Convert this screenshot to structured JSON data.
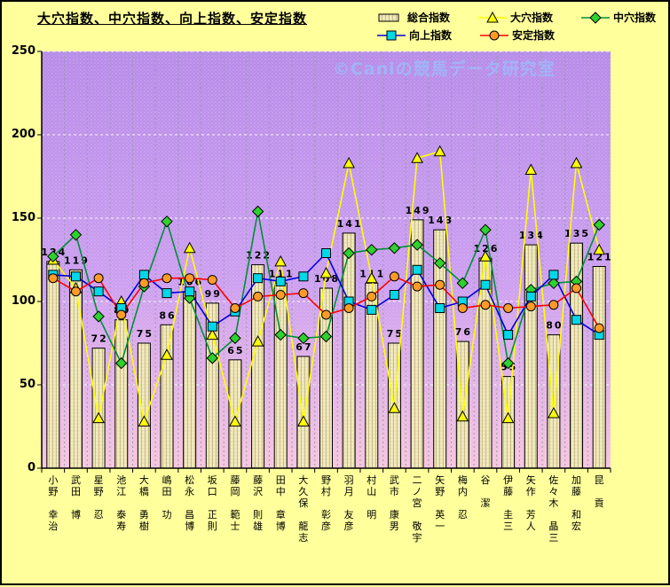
{
  "title": "大穴指数、中穴指数、向上指数、安定指数",
  "watermark": "©Caniの競馬データ研究室",
  "legend": [
    {
      "label": "総合指数",
      "swatch": "bar"
    },
    {
      "label": "大穴指数",
      "swatch": "triangle"
    },
    {
      "label": "中穴指数",
      "swatch": "diamond"
    },
    {
      "label": "向上指数",
      "swatch": "square"
    },
    {
      "label": "安定指数",
      "swatch": "circle"
    }
  ],
  "colors": {
    "page_bg": "#ffff9c",
    "plot_top": "#b68ae8",
    "plot_mid": "#cb9df0",
    "plot_bottom": "#f6c4de",
    "bar_fill": "#ece3b4",
    "bar_stripe": "#c9bd8a",
    "ooana_line": "#ffff00",
    "ooana_marker": "#ffff00",
    "chuuana_line": "#008f39",
    "chuuana_marker": "#2ed12e",
    "koujou_line": "#0000e0",
    "koujou_marker": "#00d8e8",
    "antei_line": "#ff0000",
    "antei_marker": "#ff9c28",
    "grid_h": "#ffffff",
    "grid_v": "#9a9ab0"
  },
  "chart_data": {
    "type": "combo_bar_line",
    "title": "大穴指数、中穴指数、向上指数、安定指数",
    "ylim": [
      0,
      250
    ],
    "yticks": [
      0,
      50,
      100,
      150,
      200,
      250
    ],
    "grid": true,
    "legend_position": "top-right",
    "bar_labels_visible": true,
    "categories": [
      {
        "family": "小野",
        "given": "幸治"
      },
      {
        "family": "武田",
        "given": "博"
      },
      {
        "family": "星野",
        "given": "忍"
      },
      {
        "family": "池江",
        "given": "泰寿"
      },
      {
        "family": "大橋",
        "given": "勇樹"
      },
      {
        "family": "嶋田",
        "given": "功"
      },
      {
        "family": "松永",
        "given": "昌博"
      },
      {
        "family": "坂口",
        "given": "正則"
      },
      {
        "family": "藤岡",
        "given": "範士"
      },
      {
        "family": "藤沢",
        "given": "則雄"
      },
      {
        "family": "田中",
        "given": "章博"
      },
      {
        "family": "大久保",
        "given": "龍志"
      },
      {
        "family": "野村",
        "given": "彰彦"
      },
      {
        "family": "羽月",
        "given": "友彦"
      },
      {
        "family": "村山",
        "given": "明"
      },
      {
        "family": "武市",
        "given": "康男"
      },
      {
        "family": "二ノ宮",
        "given": "敬宇"
      },
      {
        "family": "矢野",
        "given": "英一"
      },
      {
        "family": "梅内",
        "given": "忍"
      },
      {
        "family": "谷",
        "given": "潔"
      },
      {
        "family": "伊藤",
        "given": "圭三"
      },
      {
        "family": "矢作",
        "given": "芳人"
      },
      {
        "family": "佐々木",
        "given": "晶三"
      },
      {
        "family": "加藤",
        "given": "和宏"
      },
      {
        "family": "昆",
        "given": "貢"
      }
    ],
    "series": [
      {
        "name": "総合指数",
        "type": "bar",
        "marker": "none",
        "values": [
          124,
          119,
          72,
          89,
          75,
          86,
          106,
          99,
          65,
          122,
          111,
          67,
          108,
          141,
          111,
          75,
          149,
          143,
          76,
          126,
          55,
          134,
          80,
          135,
          121
        ]
      },
      {
        "name": "大穴指数",
        "type": "line",
        "marker": "triangle",
        "values": [
          125,
          108,
          30,
          100,
          28,
          68,
          132,
          80,
          28,
          76,
          124,
          28,
          117,
          183,
          114,
          36,
          186,
          190,
          31,
          127,
          30,
          179,
          33,
          183,
          131
        ]
      },
      {
        "name": "中穴指数",
        "type": "line",
        "marker": "diamond",
        "values": [
          127,
          140,
          91,
          63,
          109,
          148,
          102,
          66,
          78,
          154,
          80,
          78,
          79,
          129,
          131,
          132,
          134,
          123,
          111,
          143,
          63,
          107,
          111,
          112,
          146
        ]
      },
      {
        "name": "向上指数",
        "type": "line",
        "marker": "square",
        "values": [
          116,
          115,
          106,
          96,
          116,
          105,
          106,
          85,
          94,
          114,
          112,
          115,
          129,
          100,
          95,
          104,
          119,
          96,
          100,
          110,
          80,
          103,
          116,
          89,
          80
        ]
      },
      {
        "name": "安定指数",
        "type": "line",
        "marker": "circle",
        "values": [
          114,
          106,
          114,
          92,
          111,
          114,
          114,
          113,
          96,
          103,
          104,
          105,
          92,
          96,
          103,
          115,
          109,
          110,
          96,
          98,
          96,
          97,
          98,
          108,
          84
        ]
      }
    ]
  }
}
